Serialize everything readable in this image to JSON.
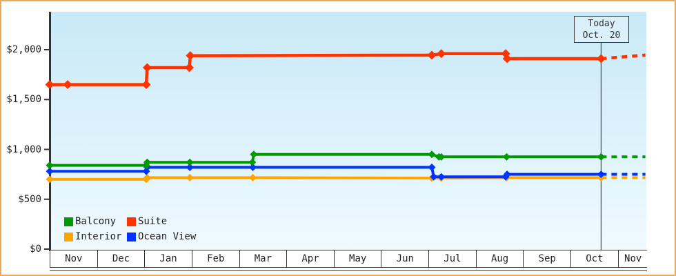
{
  "chart_data": {
    "type": "line",
    "title": "",
    "xlabel": "",
    "ylabel": "",
    "x_axis": {
      "months": [
        "Nov",
        "Dec",
        "Jan",
        "Feb",
        "Mar",
        "Apr",
        "May",
        "Jun",
        "Jul",
        "Aug",
        "Sep",
        "Oct",
        "Nov"
      ]
    },
    "y_axis": {
      "ticks": [
        {
          "label": "$0",
          "value": 0
        },
        {
          "label": "$500",
          "value": 500
        },
        {
          "label": "$1,000",
          "value": 1000
        },
        {
          "label": "$1,500",
          "value": 1500
        },
        {
          "label": "$2,000",
          "value": 2000
        }
      ],
      "ylim": [
        0,
        2380
      ]
    },
    "today": {
      "line1": "Today",
      "line2": "Oct. 20",
      "x_month": 11.645
    },
    "series": [
      {
        "name": "Interior",
        "color": "#FFA500",
        "points": [
          [
            0,
            700
          ],
          [
            2.04,
            700
          ],
          [
            2.06,
            716
          ],
          [
            2.96,
            716
          ],
          [
            4.29,
            716
          ],
          [
            8.07,
            712
          ],
          [
            8.27,
            712
          ],
          [
            9.65,
            716
          ],
          [
            11.645,
            716
          ]
        ],
        "projection": [
          [
            11.645,
            716
          ],
          [
            12.58,
            716
          ]
        ]
      },
      {
        "name": "Ocean View",
        "color": "#0033FF",
        "points": [
          [
            0,
            780
          ],
          [
            2.04,
            780
          ],
          [
            2.06,
            820
          ],
          [
            2.96,
            820
          ],
          [
            4.29,
            820
          ],
          [
            8.07,
            820
          ],
          [
            8.11,
            725
          ],
          [
            8.27,
            725
          ],
          [
            9.63,
            725
          ],
          [
            9.66,
            750
          ],
          [
            11.645,
            750
          ]
        ],
        "projection": [
          [
            11.645,
            750
          ],
          [
            12.58,
            750
          ]
        ]
      },
      {
        "name": "Balcony",
        "color": "#009A00",
        "points": [
          [
            0,
            840
          ],
          [
            2.04,
            840
          ],
          [
            2.06,
            870
          ],
          [
            2.96,
            870
          ],
          [
            4.28,
            870
          ],
          [
            4.31,
            950
          ],
          [
            8.07,
            950
          ],
          [
            8.22,
            925
          ],
          [
            8.27,
            925
          ],
          [
            9.65,
            925
          ],
          [
            11.645,
            925
          ]
        ],
        "projection": [
          [
            11.645,
            925
          ],
          [
            12.58,
            925
          ]
        ]
      },
      {
        "name": "Suite",
        "color": "#FF3300",
        "points": [
          [
            0,
            1650
          ],
          [
            0.38,
            1650
          ],
          [
            2.04,
            1650
          ],
          [
            2.06,
            1820
          ],
          [
            2.95,
            1820
          ],
          [
            2.97,
            1940
          ],
          [
            8.07,
            1945
          ],
          [
            8.27,
            1960
          ],
          [
            9.63,
            1960
          ],
          [
            9.66,
            1910
          ],
          [
            11.645,
            1910
          ]
        ],
        "projection": [
          [
            11.645,
            1910
          ],
          [
            12.58,
            1945
          ]
        ]
      }
    ],
    "legend": [
      {
        "label": "Balcony",
        "color": "#009A00"
      },
      {
        "label": "Suite",
        "color": "#FF3300"
      },
      {
        "label": "Interior",
        "color": "#FFA500"
      },
      {
        "label": "Ocean View",
        "color": "#0033FF"
      }
    ],
    "colors": {
      "plot_bg_top": "#c8e9f7",
      "plot_bg_bottom": "#f0faff",
      "axis": "#333333",
      "page_border": "#e9a95e",
      "today_line": "#444444"
    }
  }
}
